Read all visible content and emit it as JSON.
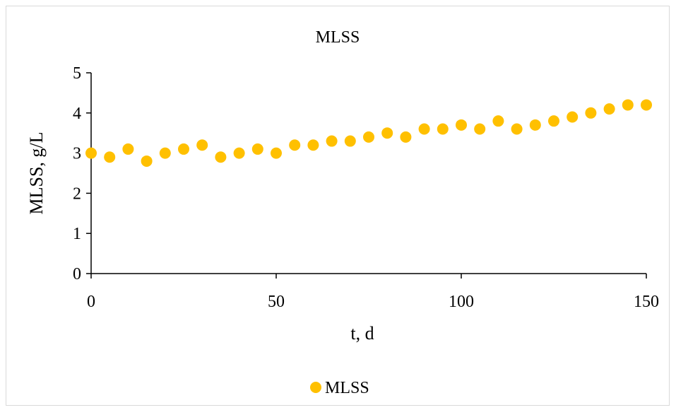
{
  "chart_data": {
    "type": "scatter",
    "title": "MLSS",
    "xlabel": "t, d",
    "ylabel": "MLSS, g/L",
    "xlim": [
      0,
      150
    ],
    "ylim": [
      0,
      5
    ],
    "xticks": [
      0,
      50,
      100,
      150
    ],
    "yticks": [
      0,
      1,
      2,
      3,
      4,
      5
    ],
    "grid": false,
    "legend_position": "bottom",
    "series": [
      {
        "name": "MLSS",
        "color": "#FFC000",
        "points": [
          {
            "x": 0,
            "y": 3.0
          },
          {
            "x": 5,
            "y": 2.9
          },
          {
            "x": 10,
            "y": 3.1
          },
          {
            "x": 15,
            "y": 2.8
          },
          {
            "x": 20,
            "y": 3.0
          },
          {
            "x": 25,
            "y": 3.1
          },
          {
            "x": 30,
            "y": 3.2
          },
          {
            "x": 35,
            "y": 2.9
          },
          {
            "x": 40,
            "y": 3.0
          },
          {
            "x": 45,
            "y": 3.1
          },
          {
            "x": 50,
            "y": 3.0
          },
          {
            "x": 55,
            "y": 3.2
          },
          {
            "x": 60,
            "y": 3.2
          },
          {
            "x": 65,
            "y": 3.3
          },
          {
            "x": 70,
            "y": 3.3
          },
          {
            "x": 75,
            "y": 3.4
          },
          {
            "x": 80,
            "y": 3.5
          },
          {
            "x": 85,
            "y": 3.4
          },
          {
            "x": 90,
            "y": 3.6
          },
          {
            "x": 95,
            "y": 3.6
          },
          {
            "x": 100,
            "y": 3.7
          },
          {
            "x": 105,
            "y": 3.6
          },
          {
            "x": 110,
            "y": 3.8
          },
          {
            "x": 115,
            "y": 3.6
          },
          {
            "x": 120,
            "y": 3.7
          },
          {
            "x": 125,
            "y": 3.8
          },
          {
            "x": 130,
            "y": 3.9
          },
          {
            "x": 135,
            "y": 4.0
          },
          {
            "x": 140,
            "y": 4.1
          },
          {
            "x": 145,
            "y": 4.2
          },
          {
            "x": 150,
            "y": 4.2
          }
        ]
      }
    ]
  }
}
